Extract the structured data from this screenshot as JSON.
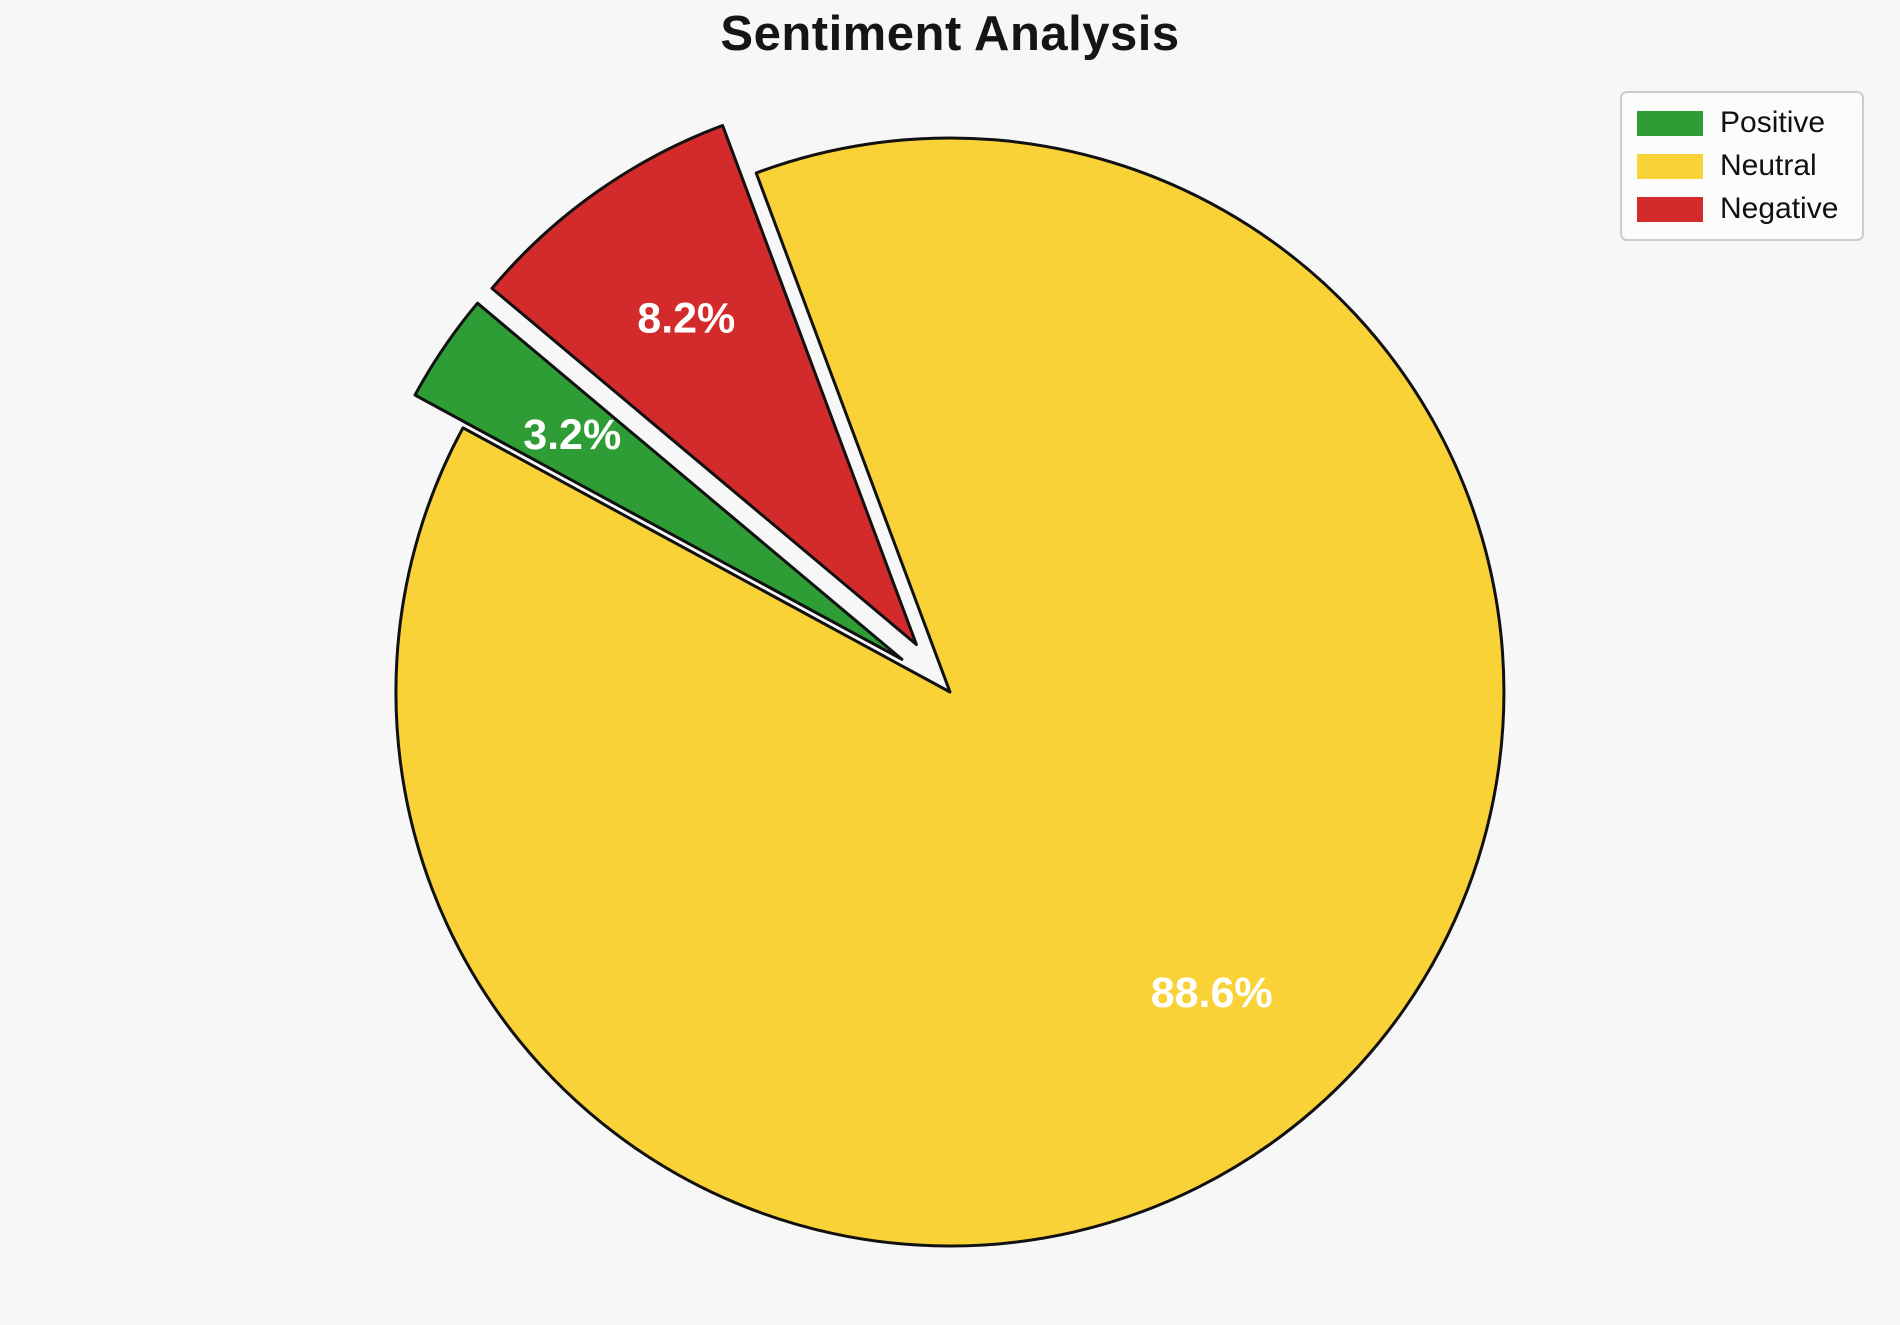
{
  "page": {
    "background_color": "#f7f7f7"
  },
  "chart_data": {
    "type": "pie",
    "title": "Sentiment Analysis",
    "labels": [
      "Positive",
      "Neutral",
      "Negative"
    ],
    "values": [
      3.2,
      88.6,
      8.2
    ],
    "value_labels": [
      "3.2%",
      "88.6%",
      "8.2%"
    ],
    "colors": [
      "#2f9d35",
      "#f9d237",
      "#d32b2b"
    ],
    "explode": [
      0.105,
      0,
      0.105
    ],
    "start_angle": 140,
    "counterclockwise": true,
    "edge_color": "#111111",
    "pct_label_color": "#ffffff",
    "pct_distance": 0.72,
    "legend": {
      "position": "upper-right",
      "entries": [
        {
          "label": "Positive",
          "color": "#2f9d35"
        },
        {
          "label": "Neutral",
          "color": "#f9d237"
        },
        {
          "label": "Negative",
          "color": "#d32b2b"
        }
      ]
    }
  }
}
